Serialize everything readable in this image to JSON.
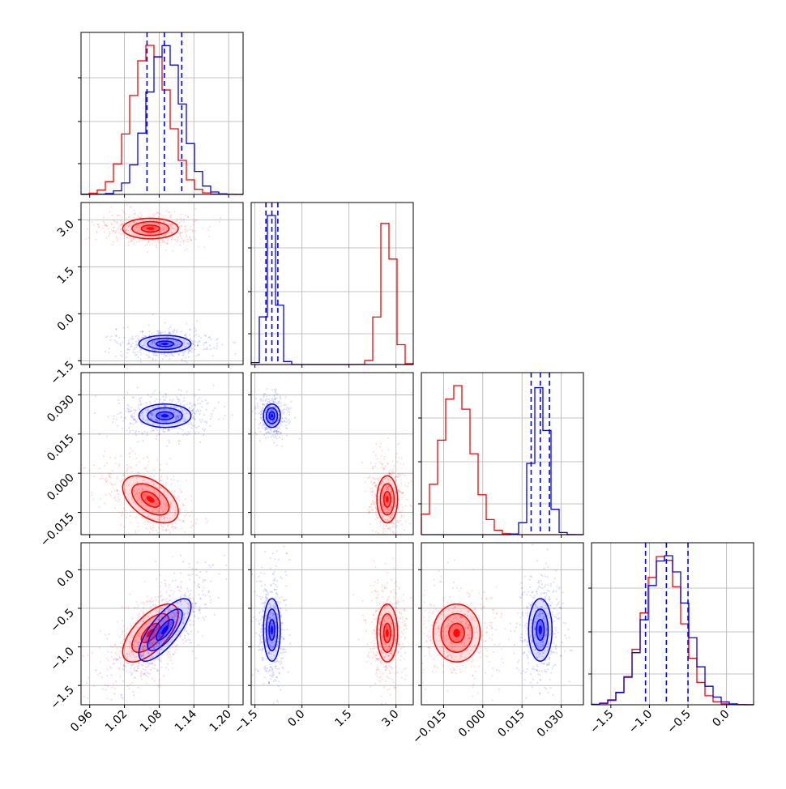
{
  "chart_data": {
    "type": "corner",
    "parameters": [
      {
        "ticks": [
          0.96,
          1.02,
          1.08,
          1.14,
          1.2
        ],
        "tick_labels": [
          "0.96",
          "1.02",
          "1.08",
          "1.14",
          "1.20"
        ],
        "range": [
          0.945,
          1.225
        ]
      },
      {
        "ticks": [
          -1.5,
          0.0,
          1.5,
          3.0
        ],
        "tick_labels": [
          "−1.5",
          "0.0",
          "1.5",
          "3.0"
        ],
        "range": [
          -1.62,
          3.55
        ]
      },
      {
        "ticks": [
          -0.015,
          0.0,
          0.015,
          0.03
        ],
        "tick_labels": [
          "−0.015",
          "0.000",
          "0.015",
          "0.030"
        ],
        "range": [
          -0.0235,
          0.0385
        ]
      },
      {
        "ticks": [
          -1.5,
          -1.0,
          -0.5,
          0.0
        ],
        "tick_labels": [
          "−1.5",
          "−1.0",
          "−0.5",
          "0.0"
        ],
        "range": [
          -1.75,
          0.35
        ]
      }
    ],
    "series": [
      {
        "color": "#ff0000",
        "mean": [
          1.065,
          2.72,
          -0.01,
          -0.82
        ],
        "std": [
          0.032,
          0.22,
          0.006,
          0.25
        ],
        "corr": {
          "0_2": -0.5,
          "0_3": 0.65
        }
      },
      {
        "color": "#0000ff",
        "mean": [
          1.09,
          -0.96,
          0.022,
          -0.78
        ],
        "std": [
          0.03,
          0.18,
          0.003,
          0.27
        ],
        "corr": {
          "0_2": 0.0,
          "0_3": 0.75
        }
      }
    ],
    "quantiles": [
      {
        "param": 0,
        "values": [
          1.059,
          1.089,
          1.119
        ]
      },
      {
        "param": 1,
        "values": [
          -1.15,
          -0.96,
          -0.77
        ]
      },
      {
        "param": 2,
        "values": [
          0.0185,
          0.022,
          0.0255
        ]
      },
      {
        "param": 3,
        "values": [
          -1.05,
          -0.78,
          -0.5
        ]
      }
    ],
    "grid": true
  }
}
